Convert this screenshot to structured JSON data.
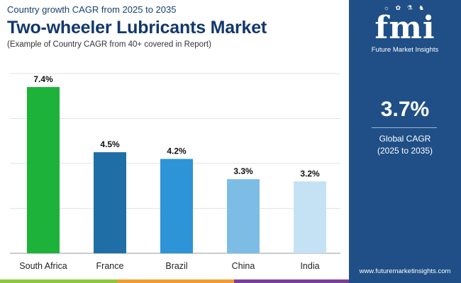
{
  "header": {
    "kicker": "Country growth CAGR from 2025 to 2035",
    "title": "Two-wheeler Lubricants Market",
    "subtitle": "(Example of Country CAGR from 40+ covered in Report)"
  },
  "side_panel": {
    "logo_text": "fmi",
    "logo_icons": "☼ ✿ ⚗ ♞",
    "logo_subtitle": "Future Market Insights",
    "kpi_value": "3.7%",
    "kpi_label_line1": "Global CAGR",
    "kpi_label_line2": "(2025 to 2035)",
    "website": "www.futuremarketinsights.com",
    "panel_color": "#1f4f86"
  },
  "footer_colors": [
    "#8dc63f",
    "#f39c33",
    "#7b3f98",
    "#1f4f86"
  ],
  "chart_data": {
    "type": "bar",
    "categories": [
      "South Africa",
      "France",
      "Brazil",
      "China",
      "India"
    ],
    "values": [
      7.4,
      4.5,
      4.2,
      3.3,
      3.2
    ],
    "data_labels": [
      "7.4%",
      "4.5%",
      "4.2%",
      "3.3%",
      "3.2%"
    ],
    "colors": [
      "#1db33a",
      "#1f6fa6",
      "#2e94d8",
      "#7dbde5",
      "#c4e2f4"
    ],
    "ylim": [
      0,
      8
    ],
    "grid": true,
    "title": "",
    "xlabel": "",
    "ylabel": ""
  }
}
